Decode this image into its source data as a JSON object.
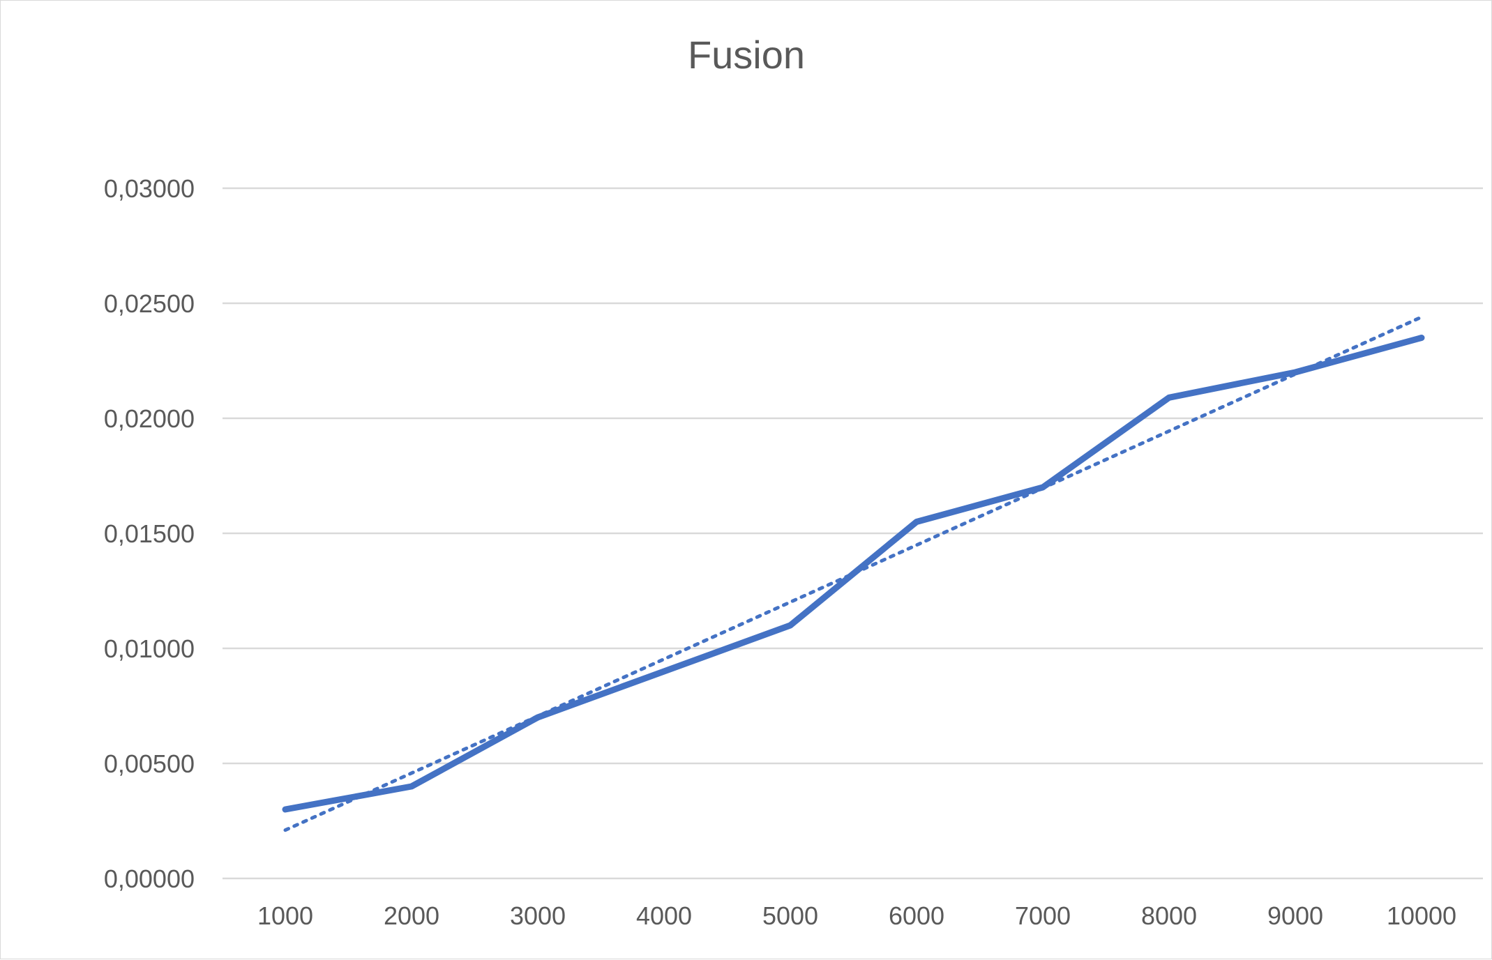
{
  "chart_data": {
    "type": "line",
    "title": "Fusion",
    "xlabel": "",
    "ylabel": "",
    "x": [
      "1000",
      "2000",
      "3000",
      "4000",
      "5000",
      "6000",
      "7000",
      "8000",
      "9000",
      "10000"
    ],
    "y_tick_labels": [
      "0,00000",
      "0,00500",
      "0,01000",
      "0,01500",
      "0,02000",
      "0,02500",
      "0,03000"
    ],
    "y_ticks": [
      0,
      0.005,
      0.01,
      0.015,
      0.02,
      0.025,
      0.03
    ],
    "ylim": [
      0,
      0.03
    ],
    "grid": true,
    "legend": "none",
    "series": [
      {
        "values": [
          0.003,
          0.004,
          0.007,
          0.009,
          0.011,
          0.0155,
          0.017,
          0.0209,
          0.022,
          0.0235
        ],
        "color": "#4472c4",
        "style": "solid"
      }
    ],
    "trendline": {
      "type": "linear",
      "style": "dotted",
      "color": "#4472c4",
      "start": 0.0021,
      "end": 0.0244
    }
  }
}
